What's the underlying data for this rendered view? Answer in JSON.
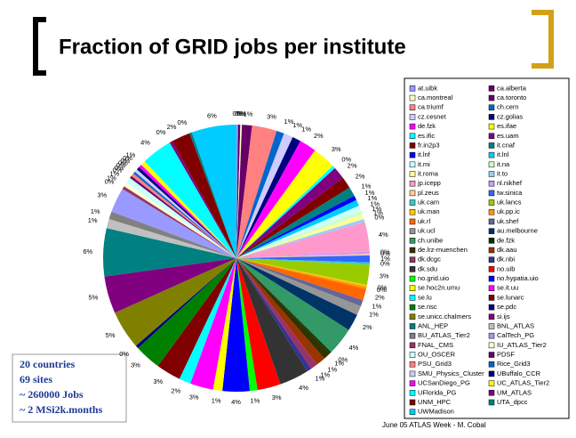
{
  "chart_data": {
    "type": "pie",
    "title": "Fraction of GRID jobs per institute",
    "categories": [
      "at.uibk",
      "ca.alberta",
      "ca.montreal",
      "ca.toronto",
      "ca.triumf",
      "ch.cern",
      "cz.cesnet",
      "cz.golias",
      "de.fzk",
      "es.ifae",
      "es.ific",
      "es.uam",
      "fr.in2p3",
      "it.cnaf",
      "it.lnf",
      "it.lnl",
      "it.mi",
      "it.na",
      "it.roma",
      "it.to",
      "jp.icepp",
      "nl.nikhef",
      "pl.zeus",
      "tw.sinica",
      "uk.cam",
      "uk.lancs",
      "uk.man",
      "uk.pp.ic",
      "uk.rl",
      "uk.shef",
      "uk.ucl",
      "au.melbourne",
      "ch.unibe",
      "de.fzk",
      "de.lrz-muenchen",
      "dk.aau",
      "dk.dcgc",
      "dk.nbi",
      "dk.sdu",
      "no.uib",
      "no.grid.uio",
      "no.hypatia.uio",
      "se.hoc2n.umu",
      "se.it.uu",
      "se.lu",
      "se.lunarc",
      "se.nsc",
      "se.pdc",
      "se.unicc.chalmers",
      "si.ijs",
      "ANL_HEP",
      "BNL_ATLAS",
      "BU_ATLAS_Tier2",
      "CalTech_PG",
      "FNAL_CMS",
      "IU_ATLAS_Tier2",
      "OU_OSCER",
      "PDSF",
      "PSU_Grid3",
      "Rice_Grid3",
      "SMU_Physics_Cluster",
      "UBuffalo_CCR",
      "UCSanDiego_PG",
      "UC_ATLAS_Tier2",
      "UFlorida_PG",
      "UM_ATLAS",
      "UNM_HPC",
      "UTA_dpcc",
      "UWMadison"
    ],
    "values": [
      0.2,
      0.3,
      0.2,
      1.3,
      3.2,
      1.0,
      1.2,
      1.1,
      2.2,
      3.0,
      0.4,
      1.6,
      1.5,
      1.2,
      0.6,
      0.8,
      0.7,
      0.5,
      0.6,
      0.4,
      3.8,
      0.3,
      0.2,
      0.9,
      0.3,
      2.6,
      0.2,
      0.3,
      1.5,
      0.8,
      1.2,
      2.2,
      3.6,
      0.2,
      1.0,
      1.2,
      0.9,
      0.6,
      3.8,
      3.0,
      1.0,
      3.5,
      1.2,
      3.0,
      1.5,
      3.2,
      3.4,
      0.4,
      5.0,
      4.8,
      6.2,
      1.2,
      1.0,
      3.2,
      0.4,
      0.5,
      0.8,
      0.3,
      0.4,
      0.3,
      0.4,
      0.4,
      0.4,
      0.6,
      4.0,
      0.4,
      2.4,
      0.3,
      5.8
    ],
    "value_labels": [
      "0%",
      "0%",
      "0%",
      "1%",
      "3%",
      "1%",
      "1%",
      "1%",
      "2%",
      "3%",
      "0%",
      "2%",
      "2%",
      "1%",
      "1%",
      "1%",
      "1%",
      "1%",
      "1%",
      "0%",
      "4%",
      "0%",
      "0%",
      "1%",
      "0%",
      "3%",
      "0%",
      "0%",
      "2%",
      "1%",
      "1%",
      "2%",
      "4%",
      "0%",
      "1%",
      "1%",
      "1%",
      "1%",
      "4%",
      "3%",
      "1%",
      "4%",
      "1%",
      "3%",
      "2%",
      "3%",
      "3%",
      "0%",
      "5%",
      "5%",
      "6%",
      "1%",
      "1%",
      "3%",
      "0%",
      "1%",
      "1%",
      "0%",
      "0%",
      "0%",
      "0%",
      "0%",
      "0%",
      "1%",
      "4%",
      "0%",
      "2%",
      "0%",
      "6%"
    ],
    "colors": [
      "#9999ff",
      "#660066",
      "#ffffcc",
      "#660066",
      "#ff8080",
      "#0066cc",
      "#ccccff",
      "#000080",
      "#ff00ff",
      "#ffff00",
      "#00ffff",
      "#800080",
      "#800000",
      "#008080",
      "#0000ff",
      "#00ccff",
      "#ccffff",
      "#ccffcc",
      "#ffff99",
      "#99ccff",
      "#ff99cc",
      "#cc99ff",
      "#ffcc99",
      "#3366ff",
      "#33cccc",
      "#99cc00",
      "#ffcc00",
      "#ff9900",
      "#ff6600",
      "#666699",
      "#969696",
      "#003366",
      "#339966",
      "#003300",
      "#333300",
      "#993300",
      "#993366",
      "#333399",
      "#333333",
      "#ff0000",
      "#00ff00",
      "#0000ff",
      "#ffff00",
      "#ff00ff",
      "#00ffff",
      "#800000",
      "#008000",
      "#000080",
      "#808000",
      "#800080",
      "#008080",
      "#c0c0c0",
      "#808080",
      "#9999ff",
      "#993366",
      "#ffffcc",
      "#ccffff",
      "#660066",
      "#ff8080",
      "#0066cc",
      "#ccccff",
      "#000080",
      "#ff00ff",
      "#ffff00",
      "#00ffff",
      "#800080",
      "#800000",
      "#008080",
      "#00ccff"
    ]
  },
  "notes": [
    "20 countries",
    "69 sites",
    "~ 260000 Jobs",
    "~ 2 MSi2k.months"
  ],
  "footer": "June 05 ATLAS Week - M. Cobal"
}
